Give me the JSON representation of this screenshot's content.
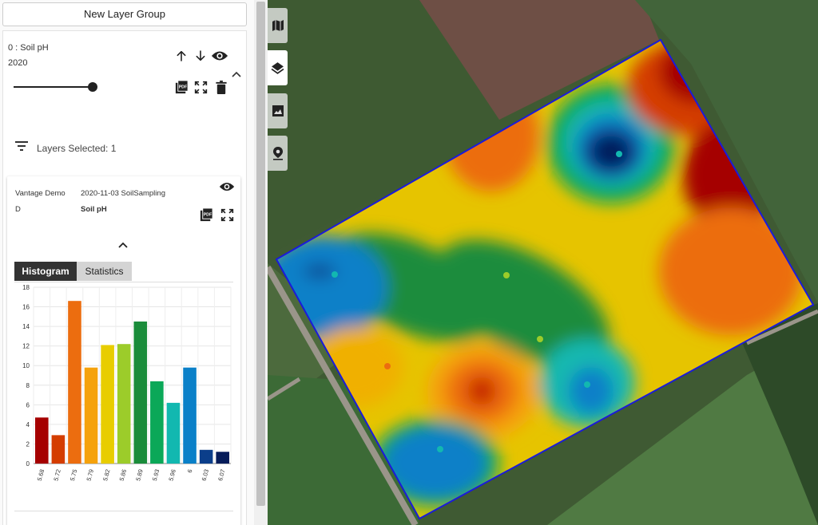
{
  "panel": {
    "new_group_label": "New Layer Group",
    "layer": {
      "name": "0 : Soil pH",
      "year": "2020",
      "opacity_level": 1.0
    },
    "filter_label": "Layers Selected: 1",
    "card": {
      "client": "Vantage Demo",
      "field": "D",
      "session": "2020-11-03 SoilSampling",
      "attribute": "Soil pH"
    },
    "tabs": {
      "histogram": "Histogram",
      "statistics": "Statistics"
    }
  },
  "icons": {
    "move_up": "arrow-up-icon",
    "move_down": "arrow-down-icon",
    "visibility": "eye-icon",
    "collapse": "chevron-up-icon",
    "pdf": "pdf-icon",
    "fullscreen": "fullscreen-icon",
    "delete": "trash-icon",
    "filter": "filter-list-icon",
    "map_tools": [
      "map-icon",
      "layers-icon",
      "image-icon",
      "pin-icon"
    ]
  },
  "colors": {
    "field_border": "#1a1adc",
    "active_tab": "#333333"
  },
  "chart_data": {
    "type": "bar",
    "categories": [
      "5.68",
      "5.72",
      "5.75",
      "5.79",
      "5.82",
      "5.86",
      "5.89",
      "5.93",
      "5.96",
      "6",
      "6.03",
      "6.07"
    ],
    "values": [
      4.7,
      2.9,
      16.6,
      9.8,
      12.1,
      12.2,
      14.5,
      8.4,
      6.2,
      9.8,
      1.4,
      1.2
    ],
    "colors": [
      "#a50000",
      "#d43d00",
      "#ec6d0f",
      "#f5a20c",
      "#e8cd00",
      "#9ccc2a",
      "#1a8c3a",
      "#0ba858",
      "#12b8b0",
      "#0a80c8",
      "#0b3e8a",
      "#061c5a"
    ],
    "ylim": [
      0,
      18
    ],
    "yticks": [
      "0",
      "2",
      "4",
      "6",
      "8",
      "10",
      "12",
      "14",
      "16",
      "18"
    ],
    "grid": true
  }
}
